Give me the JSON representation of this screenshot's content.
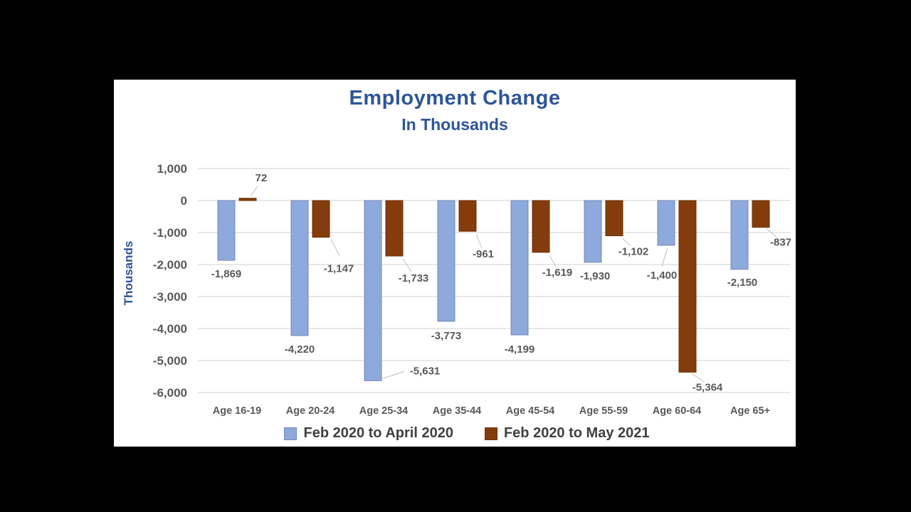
{
  "chart_data": {
    "type": "bar",
    "title": "Employment Change",
    "subtitle": "In Thousands",
    "ylabel": "Thousands",
    "categories": [
      "Age 16-19",
      "Age 20-24",
      "Age 25-34",
      "Age 35-44",
      "Age 45-54",
      "Age 55-59",
      "Age 60-64",
      "Age 65+"
    ],
    "series": [
      {
        "name": "Feb 2020 to April 2020",
        "color": "#8EA9DB",
        "border": "#7487B8",
        "values": [
          -1869,
          -4220,
          -5631,
          -3773,
          -4199,
          -1930,
          -1400,
          -2150
        ],
        "labels": [
          "-1,869",
          "-4,220",
          "-5,631",
          "-3,773",
          "-4,199",
          "-1,930",
          "-1,400",
          "-2,150"
        ]
      },
      {
        "name": "Feb 2020 to May 2021",
        "color": "#843C0C",
        "border": "#6E3109",
        "values": [
          72,
          -1147,
          -1733,
          -961,
          -1619,
          -1102,
          -5364,
          -837
        ],
        "labels": [
          "72",
          "-1,147",
          "-1,733",
          "-961",
          "-1,619",
          "-1,102",
          "-5,364",
          "-837"
        ]
      }
    ],
    "yticks": {
      "values": [
        1000,
        0,
        -1000,
        -2000,
        -3000,
        -4000,
        -5000,
        -6000
      ],
      "labels": [
        "1,000",
        "0",
        "-1,000",
        "-2,000",
        "-3,000",
        "-4,000",
        "-5,000",
        "-6,000"
      ]
    },
    "ylim": [
      -6000,
      1000
    ],
    "grid": true,
    "legend_position": "bottom",
    "colors": {
      "title": "#2E5597",
      "axis_text": "#595959",
      "grid": "#D9D9D9",
      "leader_line": "#BFBFBF",
      "legend_text": "#3F3F3F",
      "chart_background": "#FFFFFF",
      "page_background": "#000000"
    }
  }
}
